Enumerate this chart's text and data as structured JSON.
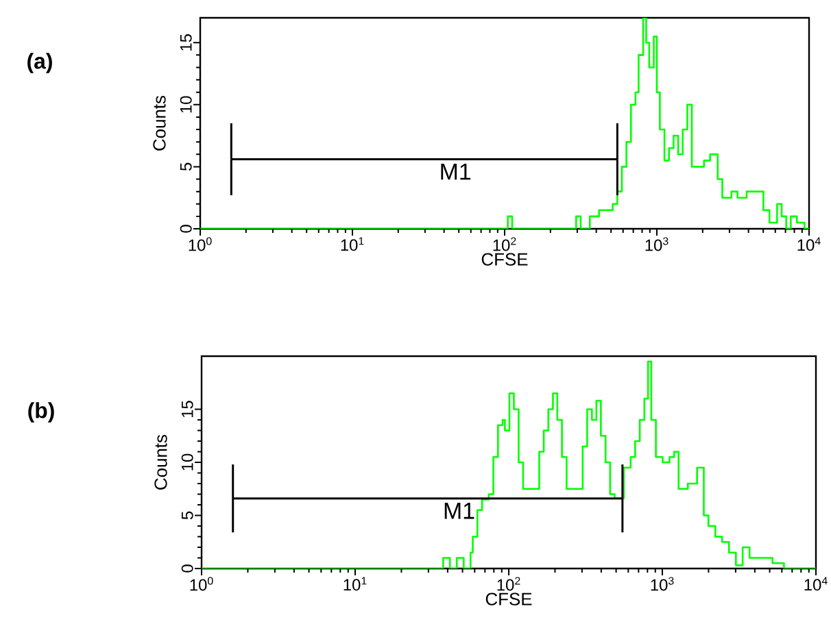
{
  "chart_data": [
    {
      "type": "step",
      "title": "(a)",
      "xlabel": "CFSE",
      "ylabel": "Counts",
      "log": "x",
      "series": [
        {
          "color": "#00ff00",
          "x": [
            1,
            105,
            112,
            120,
            295,
            316,
            363,
            417,
            513,
            550,
            589,
            631,
            676,
            724,
            759,
            813,
            851,
            891,
            955,
            1000,
            1047,
            1122,
            1202,
            1288,
            1380,
            1479,
            1585,
            1698,
            1820,
            2042,
            2239,
            2512,
            2692,
            3090,
            3388,
            3890,
            4365,
            5012,
            5495,
            6166,
            6607,
            7079,
            7586,
            8318,
            9333,
            10000
          ],
          "values": [
            0,
            1,
            0,
            0,
            1,
            0,
            1,
            1.5,
            2,
            3,
            5,
            7,
            10,
            11,
            14,
            17,
            15,
            13,
            15.5,
            11,
            8,
            5.5,
            6.5,
            7.5,
            6,
            8,
            10,
            5,
            5,
            5.5,
            6,
            4,
            2.5,
            3,
            2.5,
            3,
            3,
            1.5,
            0.5,
            2,
            1,
            0,
            1,
            0.5,
            0,
            0
          ]
        },
        {
          "type": "line",
          "color": "#000000",
          "x": [
            1.6,
            550
          ],
          "values": [
            5.6,
            5.6
          ],
          "errors": [
            2.9,
            2.9
          ]
        }
      ],
      "annotations": [
        "M1"
      ],
      "xlim": [
        1,
        10000
      ],
      "ylim": [
        0,
        17
      ],
      "xticks": [
        {
          "value": 1,
          "label": "10$^{0}$"
        },
        {
          "value": 10,
          "label": "10$^{1}$"
        },
        {
          "value": 100,
          "label": "10$^{2}$"
        },
        {
          "value": 1000,
          "label": "10$^{3}$"
        },
        {
          "value": 10000,
          "label": "10$^{4}$"
        }
      ],
      "yticks": [
        0,
        5,
        10,
        15
      ]
    },
    {
      "type": "step",
      "title": "(b)",
      "xlabel": "CFSE",
      "ylabel": "Counts",
      "log": "x",
      "series": [
        {
          "color": "#00ff00",
          "x": [
            1,
            37.4,
            41.4,
            45.9,
            50.9,
            56.4,
            58.3,
            62.5,
            67,
            74.1,
            79.4,
            85.1,
            91.2,
            94.4,
            101,
            108,
            116,
            124,
            138,
            147,
            158,
            169,
            181,
            194,
            207,
            222,
            238,
            273,
            303,
            324,
            348,
            372,
            398,
            427,
            457,
            489,
            561,
            622,
            665,
            713,
            764,
            807,
            847,
            908,
            1005,
            1114,
            1194,
            1276,
            1466,
            1683,
            1862,
            1995,
            2213,
            2449,
            2716,
            3013,
            3334,
            3698,
            4102,
            5212,
            6194,
            6855,
            10000
          ],
          "values": [
            0,
            1,
            0,
            1,
            0,
            1.5,
            3,
            5.5,
            6.5,
            7,
            10.5,
            13.5,
            14,
            13,
            16.5,
            15,
            10,
            7.5,
            7.5,
            7.5,
            11,
            13,
            15,
            16.5,
            14,
            10.5,
            7.5,
            7.5,
            11.5,
            15,
            14,
            15.8,
            12.5,
            10,
            7,
            6.6,
            9.5,
            10.5,
            12,
            14,
            16,
            19.5,
            14,
            10.5,
            10,
            10.5,
            11,
            7.5,
            8,
            9.5,
            5,
            4,
            3,
            2.5,
            1.5,
            0.3,
            2,
            1,
            1,
            0.5,
            0,
            0,
            0
          ]
        },
        {
          "type": "line",
          "color": "#000000",
          "x": [
            1.6,
            550
          ],
          "values": [
            6.6,
            6.6
          ],
          "errors": [
            3.2,
            3.2
          ]
        }
      ],
      "annotations": [
        "M1"
      ],
      "xlim": [
        1,
        10000
      ],
      "ylim": [
        0,
        20
      ],
      "xticks": [
        {
          "value": 1,
          "label": "10$^{0}$"
        },
        {
          "value": 10,
          "label": "10$^{1}$"
        },
        {
          "value": 100,
          "label": "10$^{2}$"
        },
        {
          "value": 1000,
          "label": "10$^{3}$"
        },
        {
          "value": 10000,
          "label": "10$^{4}$"
        }
      ],
      "yticks": [
        0,
        5,
        10,
        15
      ]
    }
  ]
}
